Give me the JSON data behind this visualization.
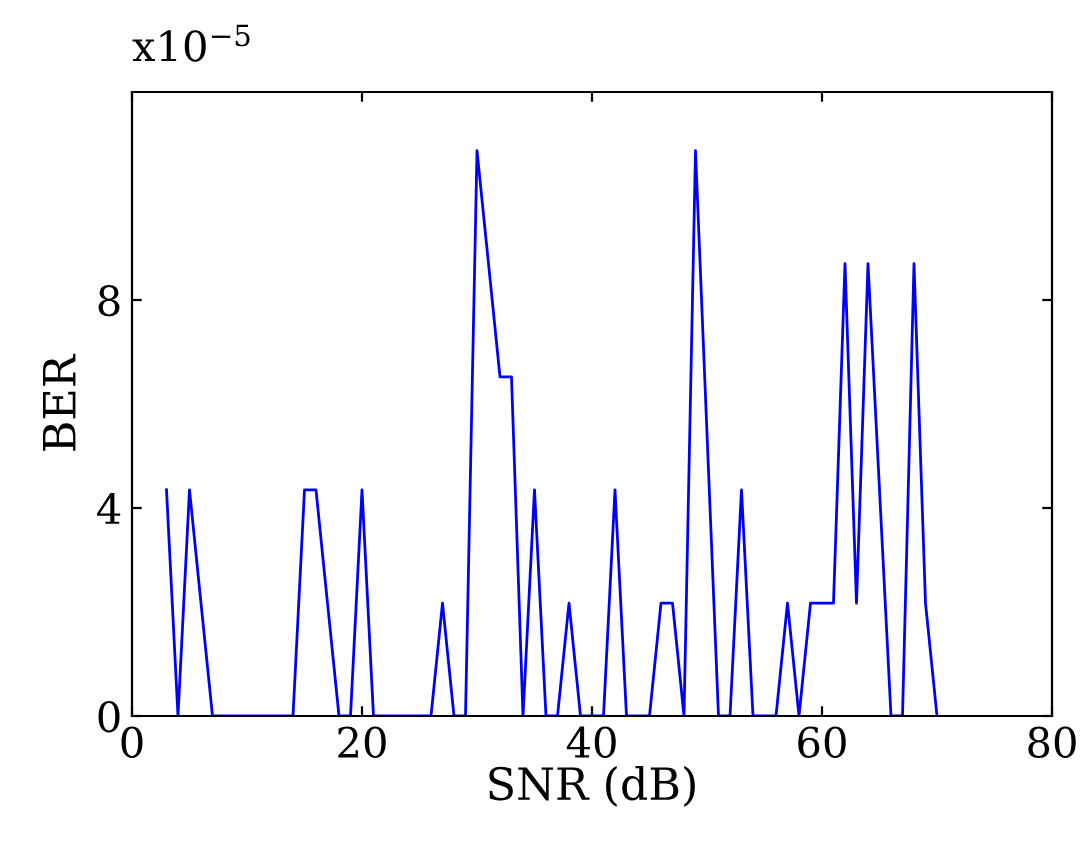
{
  "chart_data": {
    "type": "line",
    "xlabel": "SNR (dB)",
    "ylabel": "BER",
    "annotations": [
      "x10$^{−5}$"
    ],
    "x": [
      3,
      4,
      5,
      6,
      7,
      8,
      9,
      10,
      11,
      12,
      13,
      14,
      15,
      16,
      17,
      18,
      19,
      20,
      21,
      22,
      23,
      24,
      25,
      26,
      27,
      28,
      29,
      30,
      31,
      32,
      33,
      34,
      35,
      36,
      37,
      38,
      39,
      40,
      41,
      42,
      43,
      44,
      45,
      46,
      47,
      48,
      49,
      51,
      52,
      53,
      54,
      55,
      56,
      57,
      58,
      59,
      60,
      61,
      62,
      63,
      64,
      65,
      66,
      67,
      68,
      69,
      70
    ],
    "series": [
      {
        "color": "#0000ff",
        "values": [
          4.35,
          0,
          4.35,
          2.17,
          0,
          0,
          0,
          0,
          0,
          0,
          0,
          0,
          4.35,
          4.35,
          2.17,
          0,
          0,
          4.35,
          0,
          0,
          0,
          0,
          0,
          0,
          2.17,
          0,
          0,
          10.87,
          8.7,
          6.52,
          6.52,
          0,
          4.35,
          0,
          0,
          2.17,
          0,
          0,
          0,
          4.35,
          0,
          0,
          0,
          2.17,
          2.17,
          0,
          10.87,
          0,
          0,
          4.35,
          0,
          0,
          0,
          2.17,
          0,
          2.17,
          2.17,
          2.17,
          8.7,
          2.17,
          8.7,
          4.35,
          0,
          0,
          8.7,
          2.17,
          0
        ]
      }
    ],
    "xlim": [
      0,
      80
    ],
    "xticks": [
      0,
      20,
      40,
      60,
      80
    ],
    "ylim": [
      0,
      12
    ],
    "yticks": [
      0,
      4,
      8
    ],
    "grid": false,
    "legend": false,
    "marker": "none",
    "line_style": "solid"
  }
}
